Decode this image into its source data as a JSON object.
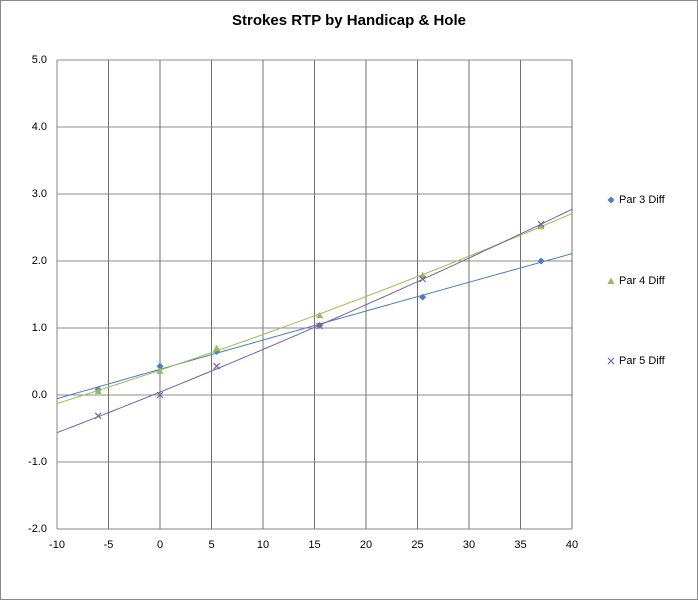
{
  "chart_data": {
    "type": "scatter",
    "title": "Strokes RTP by Handicap & Hole",
    "x": [
      -6,
      0,
      5.5,
      15.5,
      25.5,
      37
    ],
    "series": [
      {
        "name": "Par 3 Diff",
        "color": "#4a7ebb",
        "marker": "diamond",
        "values": [
          0.08,
          0.43,
          0.65,
          1.04,
          1.46,
          2.0
        ]
      },
      {
        "name": "Par 4 Diff",
        "color": "#9bbb59",
        "marker": "triangle",
        "values": [
          0.06,
          0.36,
          0.7,
          1.19,
          1.79,
          2.52
        ]
      },
      {
        "name": "Par 5 Diff",
        "color": "#7e5fa0",
        "marker": "cross",
        "values": [
          -0.31,
          0.0,
          0.43,
          1.03,
          1.73,
          2.55
        ]
      }
    ],
    "trendline": "polynomial-2",
    "xlim": [
      -10,
      40
    ],
    "xticks": [
      -10,
      -5,
      0,
      5,
      10,
      15,
      20,
      25,
      30,
      35,
      40
    ],
    "ylim": [
      -2,
      5
    ],
    "yticks": [
      {
        "value": -2,
        "label": "-2.0"
      },
      {
        "value": -1,
        "label": "-1.0"
      },
      {
        "value": 0,
        "label": "0.0"
      },
      {
        "value": 1,
        "label": "1.0"
      },
      {
        "value": 2,
        "label": "2.0"
      },
      {
        "value": 3,
        "label": "3.0"
      },
      {
        "value": 4,
        "label": "4.0"
      },
      {
        "value": 5,
        "label": "5.0"
      }
    ],
    "grid": true,
    "legend": "right"
  }
}
